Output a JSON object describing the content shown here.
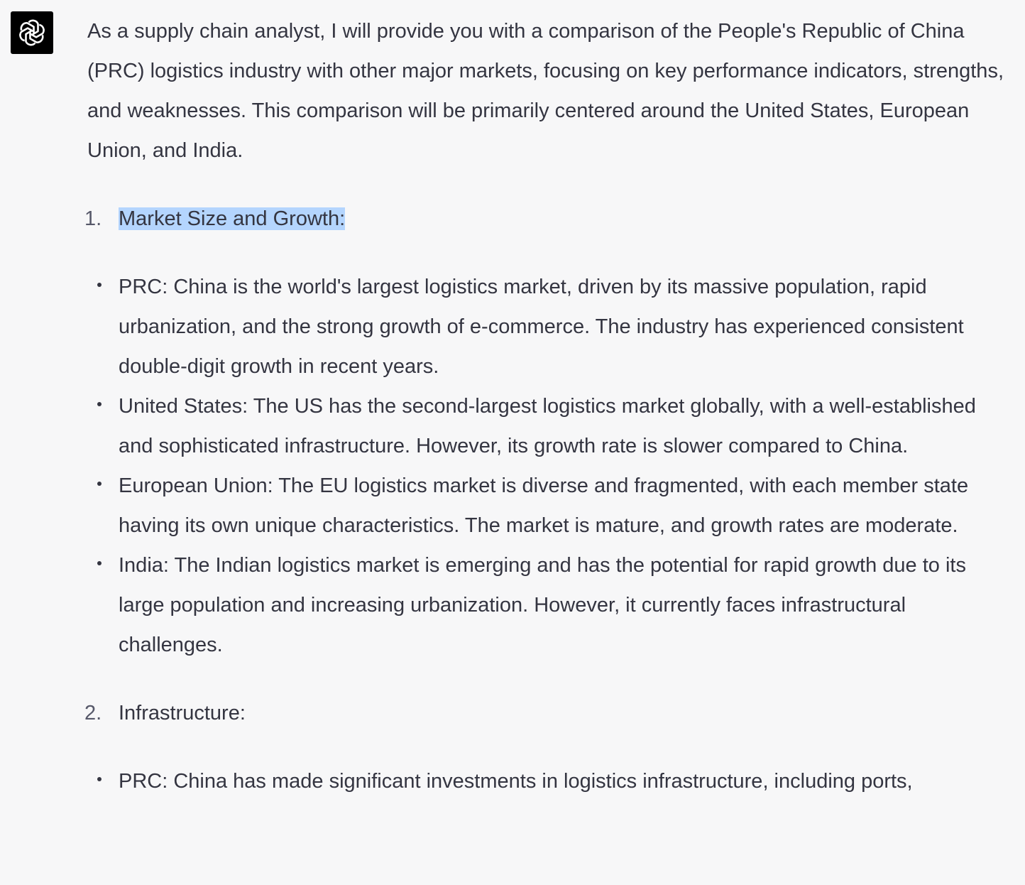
{
  "avatar": {
    "icon": "openai-logo-icon",
    "background": "#000000"
  },
  "message": {
    "intro": "As a supply chain analyst, I will provide you with a comparison of the People's Republic of China (PRC) logistics industry with other major markets, focusing on key performance indicators, strengths, and weaknesses. This comparison will be primarily centered around the United States, European Union, and India.",
    "sections": [
      {
        "number": "1.",
        "heading": "Market Size and Growth:",
        "highlighted": true,
        "bullets": [
          "PRC: China is the world's largest logistics market, driven by its massive population, rapid urbanization, and the strong growth of e-commerce. The industry has experienced consistent double-digit growth in recent years.",
          "United States: The US has the second-largest logistics market globally, with a well-established and sophisticated infrastructure. However, its growth rate is slower compared to China.",
          "European Union: The EU logistics market is diverse and fragmented, with each member state having its own unique characteristics. The market is mature, and growth rates are moderate.",
          "India: The Indian logistics market is emerging and has the potential for rapid growth due to its large population and increasing urbanization. However, it currently faces infrastructural challenges."
        ]
      },
      {
        "number": "2.",
        "heading": "Infrastructure:",
        "highlighted": false,
        "bullets": [
          "PRC: China has made significant investments in logistics infrastructure, including ports,"
        ]
      }
    ]
  },
  "colors": {
    "page_background": "#f7f7f8",
    "text": "#343541",
    "selection_highlight": "#b4d5fe"
  }
}
